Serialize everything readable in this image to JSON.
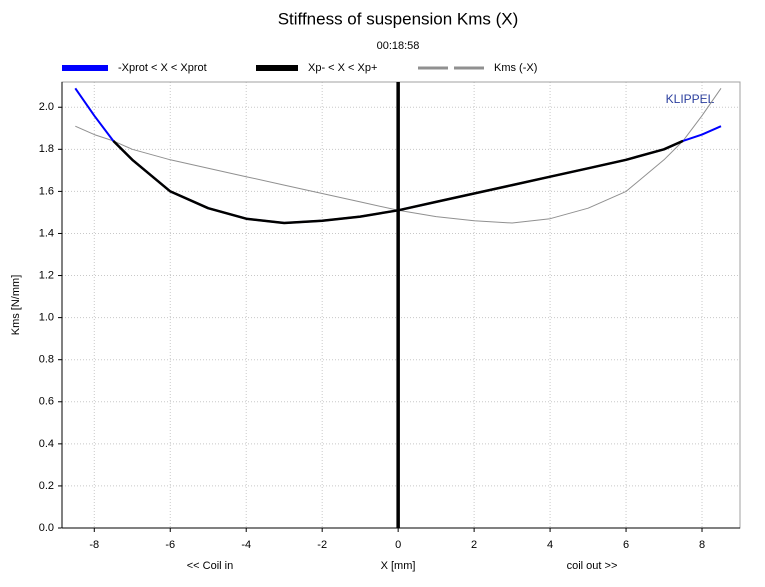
{
  "chart_data": {
    "type": "line",
    "title": "Stiffness of suspension Kms (X)",
    "subtitle": "00:18:58",
    "xlabel": "X [mm]",
    "ylabel": "Kms [N/mm]",
    "annotations": [
      "<< Coil in",
      "coil out >>",
      "KLIPPEL"
    ],
    "x": [
      -8.5,
      -8,
      -7.5,
      -7,
      -6,
      -5,
      -4,
      -3,
      -2,
      -1,
      0,
      1,
      2,
      3,
      4,
      5,
      6,
      7,
      7.5,
      8,
      8.5
    ],
    "series": [
      {
        "name": "-Xprot < X < Xprot",
        "color": "#0000ff",
        "values": [
          2.09,
          1.96,
          1.84,
          1.75,
          1.6,
          1.52,
          1.47,
          1.45,
          1.46,
          1.48,
          1.51,
          1.55,
          1.59,
          1.63,
          1.67,
          1.71,
          1.75,
          1.8,
          1.84,
          1.87,
          1.91
        ]
      },
      {
        "name": "Xp- < X < Xp+",
        "color": "#000000",
        "values": [
          null,
          null,
          1.84,
          1.75,
          1.6,
          1.52,
          1.47,
          1.45,
          1.46,
          1.48,
          1.51,
          1.55,
          1.59,
          1.63,
          1.67,
          1.71,
          1.75,
          1.8,
          1.84,
          null,
          null
        ]
      },
      {
        "name": "Kms (-X)",
        "color": "#909090",
        "values": [
          1.91,
          1.87,
          1.84,
          1.8,
          1.75,
          1.71,
          1.67,
          1.63,
          1.59,
          1.55,
          1.51,
          1.48,
          1.46,
          1.45,
          1.47,
          1.52,
          1.6,
          1.75,
          1.84,
          1.96,
          2.09
        ]
      }
    ],
    "vline": 0,
    "xlim": [
      -8.85,
      9.0
    ],
    "ylim": [
      0,
      2.12
    ],
    "xticks": [
      -8,
      -6,
      -4,
      -2,
      0,
      2,
      4,
      6,
      8
    ],
    "yticks": [
      {
        "value": 0,
        "label": "0.0"
      },
      0.2,
      0.4,
      0.6,
      0.8,
      {
        "value": 1,
        "label": "1.0"
      },
      1.2,
      1.4,
      1.6,
      1.8,
      {
        "value": 2,
        "label": "2.0"
      }
    ],
    "grid": true,
    "legend": "top"
  }
}
